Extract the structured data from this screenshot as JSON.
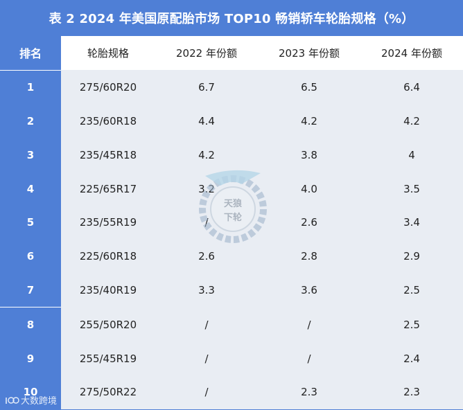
{
  "title": "表 2 2024 年美国原配胎市场 TOP10 畅销轿车轮胎规格（%）",
  "colors": {
    "accent": "#4f7fd6",
    "header_bg": "#ffffff",
    "row_bg": "#e9edf3"
  },
  "table": {
    "headers": [
      "排名",
      "轮胎规格",
      "2022 年份额",
      "2023 年份额",
      "2024 年份额"
    ],
    "rows": [
      {
        "rank": "1",
        "spec": "275/60R20",
        "y2022": "6.7",
        "y2023": "6.5",
        "y2024": "6.4"
      },
      {
        "rank": "2",
        "spec": "235/60R18",
        "y2022": "4.4",
        "y2023": "4.2",
        "y2024": "4.2"
      },
      {
        "rank": "3",
        "spec": "235/45R18",
        "y2022": "4.2",
        "y2023": "3.8",
        "y2024": "4"
      },
      {
        "rank": "4",
        "spec": "225/65R17",
        "y2022": "3.2",
        "y2023": "4.0",
        "y2024": "3.5"
      },
      {
        "rank": "5",
        "spec": "235/55R19",
        "y2022": "/",
        "y2023": "2.6",
        "y2024": "3.4"
      },
      {
        "rank": "6",
        "spec": "225/60R18",
        "y2022": "2.6",
        "y2023": "2.8",
        "y2024": "2.9"
      },
      {
        "rank": "7",
        "spec": "235/40R19",
        "y2022": "3.3",
        "y2023": "3.6",
        "y2024": "2.5"
      },
      {
        "rank": "8",
        "spec": "255/50R20",
        "y2022": "/",
        "y2023": "/",
        "y2024": "2.5"
      },
      {
        "rank": "9",
        "spec": "255/45R19",
        "y2022": "/",
        "y2023": "/",
        "y2024": "2.4"
      },
      {
        "rank": "10",
        "spec": "275/50R22",
        "y2022": "/",
        "y2023": "2.3",
        "y2024": "2.3"
      }
    ]
  },
  "watermark": {
    "text_top": "天狼",
    "text_bottom": "下轮"
  },
  "footer": {
    "logo_text": "大数跨境"
  }
}
